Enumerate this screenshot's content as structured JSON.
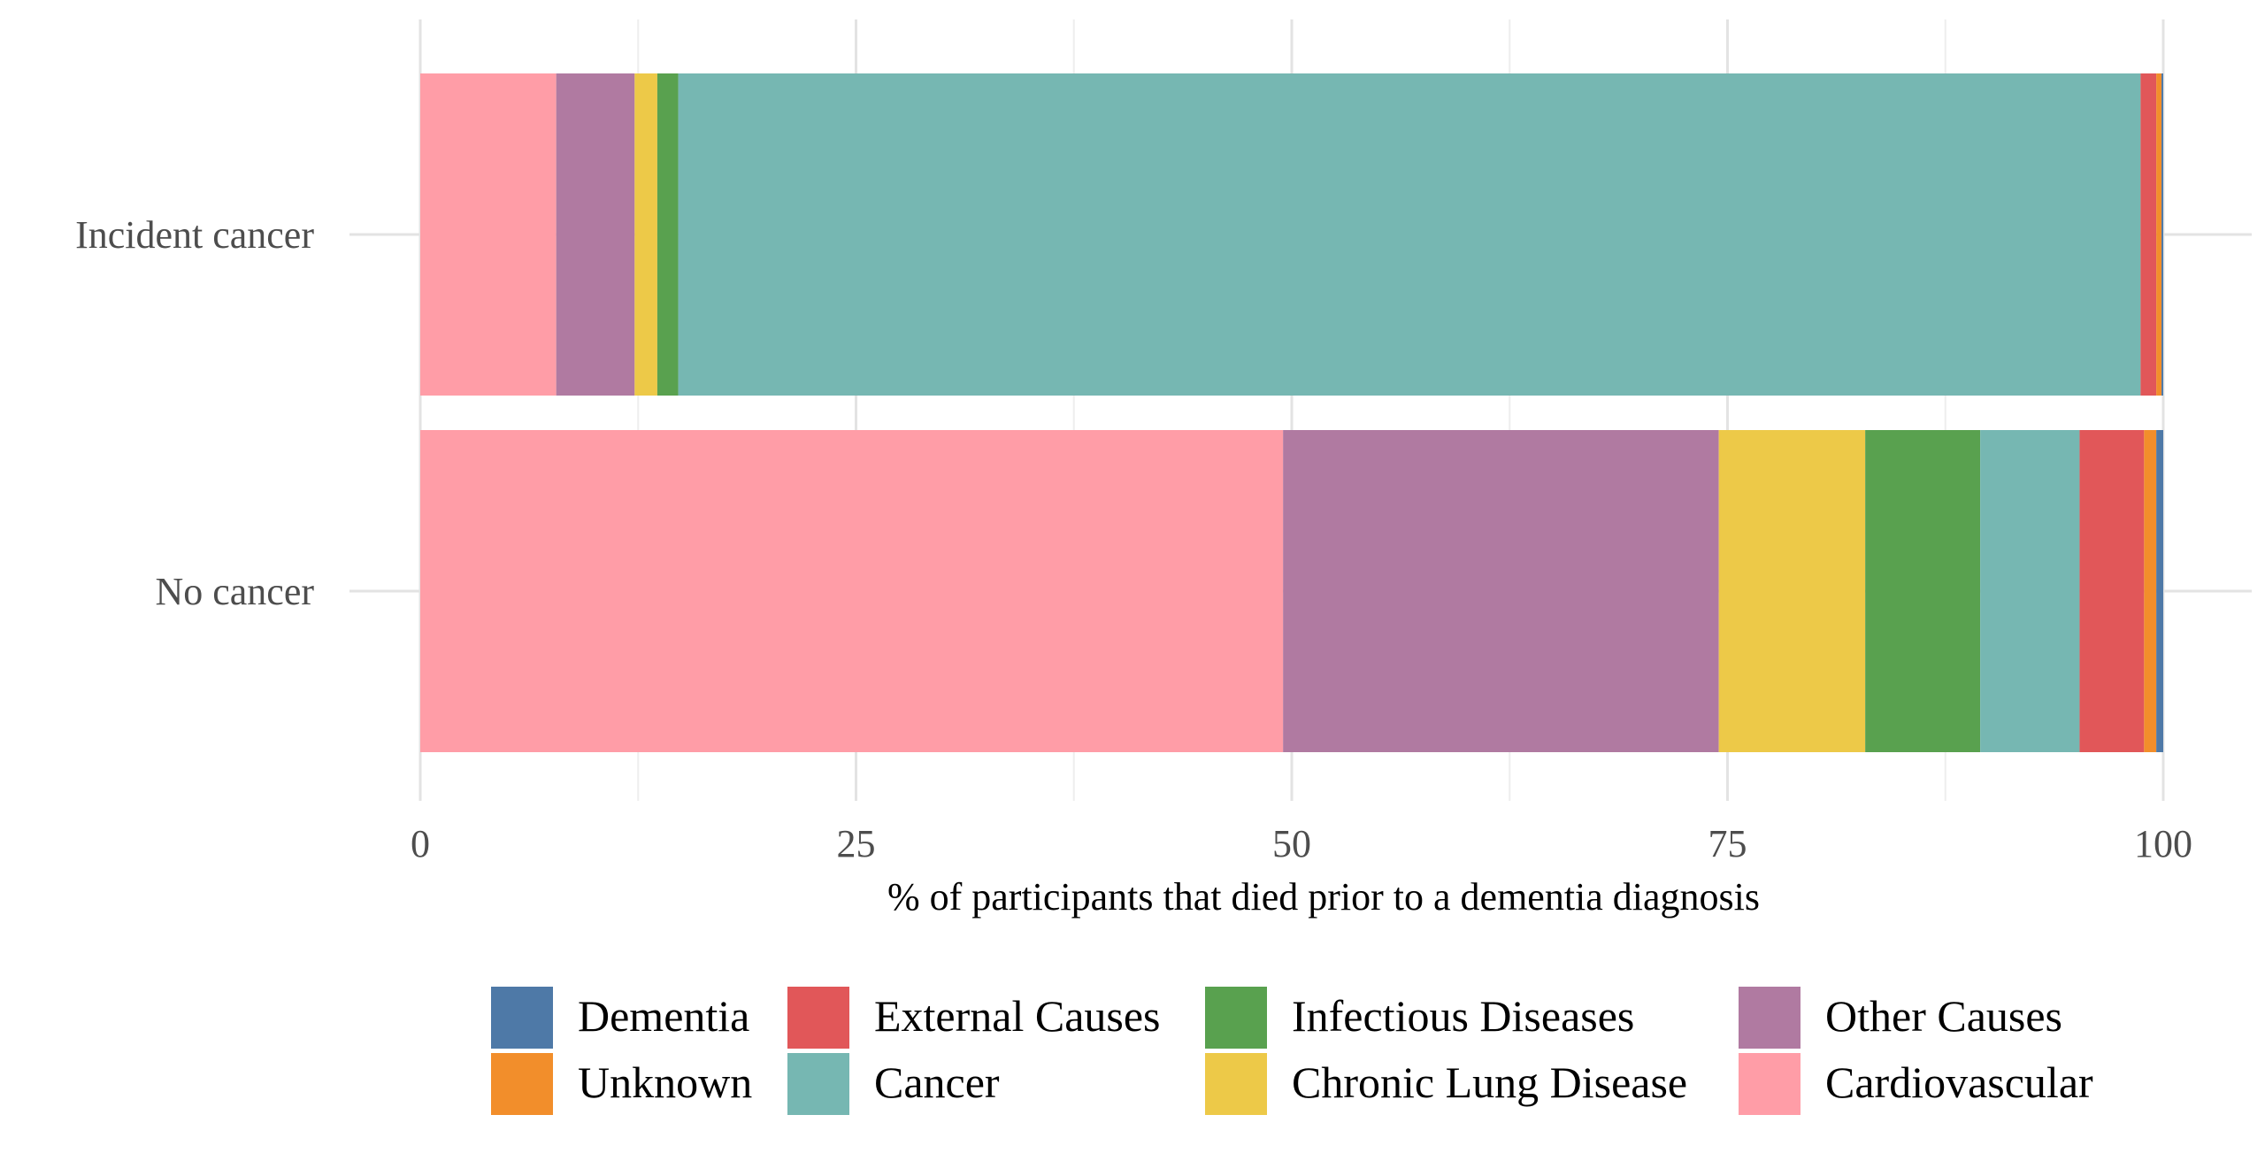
{
  "chart_data": {
    "type": "bar",
    "orientation": "horizontal",
    "stacked": true,
    "title": "",
    "xlabel": "% of participants that died prior to a dementia diagnosis",
    "ylabel": "",
    "xlim": [
      0,
      100
    ],
    "x_ticks": [
      0,
      25,
      50,
      75,
      100
    ],
    "grid": true,
    "legend_position": "bottom",
    "categories": [
      "Incident cancer",
      "No cancer"
    ],
    "series": [
      {
        "name": "Cardiovascular",
        "color": "#FF9DA7",
        "values": [
          7.8,
          49.5
        ]
      },
      {
        "name": "Other Causes",
        "color": "#B07AA1",
        "values": [
          4.5,
          25.0
        ]
      },
      {
        "name": "Chronic Lung Disease",
        "color": "#EDC948",
        "values": [
          1.3,
          8.4
        ]
      },
      {
        "name": "Infectious Diseases",
        "color": "#59A14F",
        "values": [
          1.2,
          6.6
        ]
      },
      {
        "name": "Cancer",
        "color": "#76B7B2",
        "values": [
          83.9,
          5.7
        ]
      },
      {
        "name": "External Causes",
        "color": "#E15759",
        "values": [
          0.9,
          3.7
        ]
      },
      {
        "name": "Unknown",
        "color": "#F28E2B",
        "values": [
          0.3,
          0.7
        ]
      },
      {
        "name": "Dementia",
        "color": "#4E79A7",
        "values": [
          0.1,
          0.4
        ]
      }
    ],
    "legend_rows": [
      [
        "Dementia",
        "External Causes",
        "Infectious Diseases",
        "Other Causes"
      ],
      [
        "Unknown",
        "Cancer",
        "Chronic Lung Disease",
        "Cardiovascular"
      ]
    ]
  }
}
